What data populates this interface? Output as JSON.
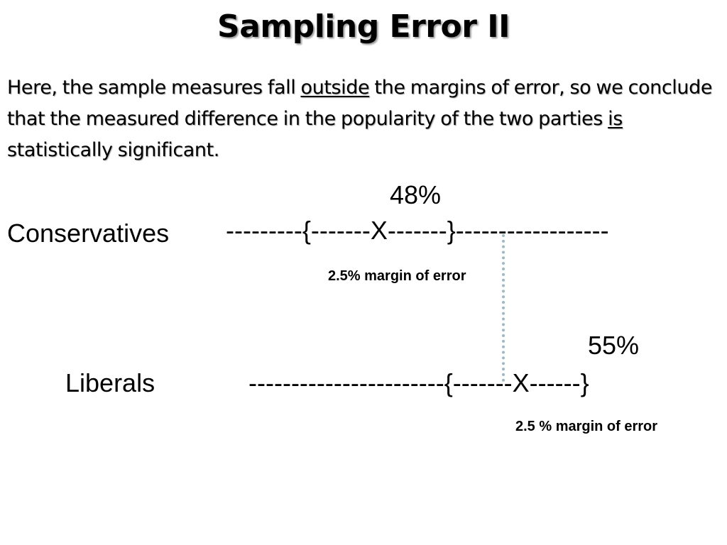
{
  "slide": {
    "title": "Sampling Error II",
    "intro": {
      "part1": "Here, the sample measures fall ",
      "emph1": "outside",
      "part2": " the margins of error, so we conclude that the measured difference in the popularity of the two parties ",
      "emph2": "is",
      "part3": " statistically significant."
    }
  },
  "conservatives": {
    "value": "48%",
    "label": "Conservatives",
    "line": "---------{-------X-------}------------------",
    "margin": "2.5% margin of error"
  },
  "liberals": {
    "value": "55%",
    "label": "Liberals",
    "line": "-----------------------{-------X------}",
    "margin": "2.5 % margin of error"
  }
}
